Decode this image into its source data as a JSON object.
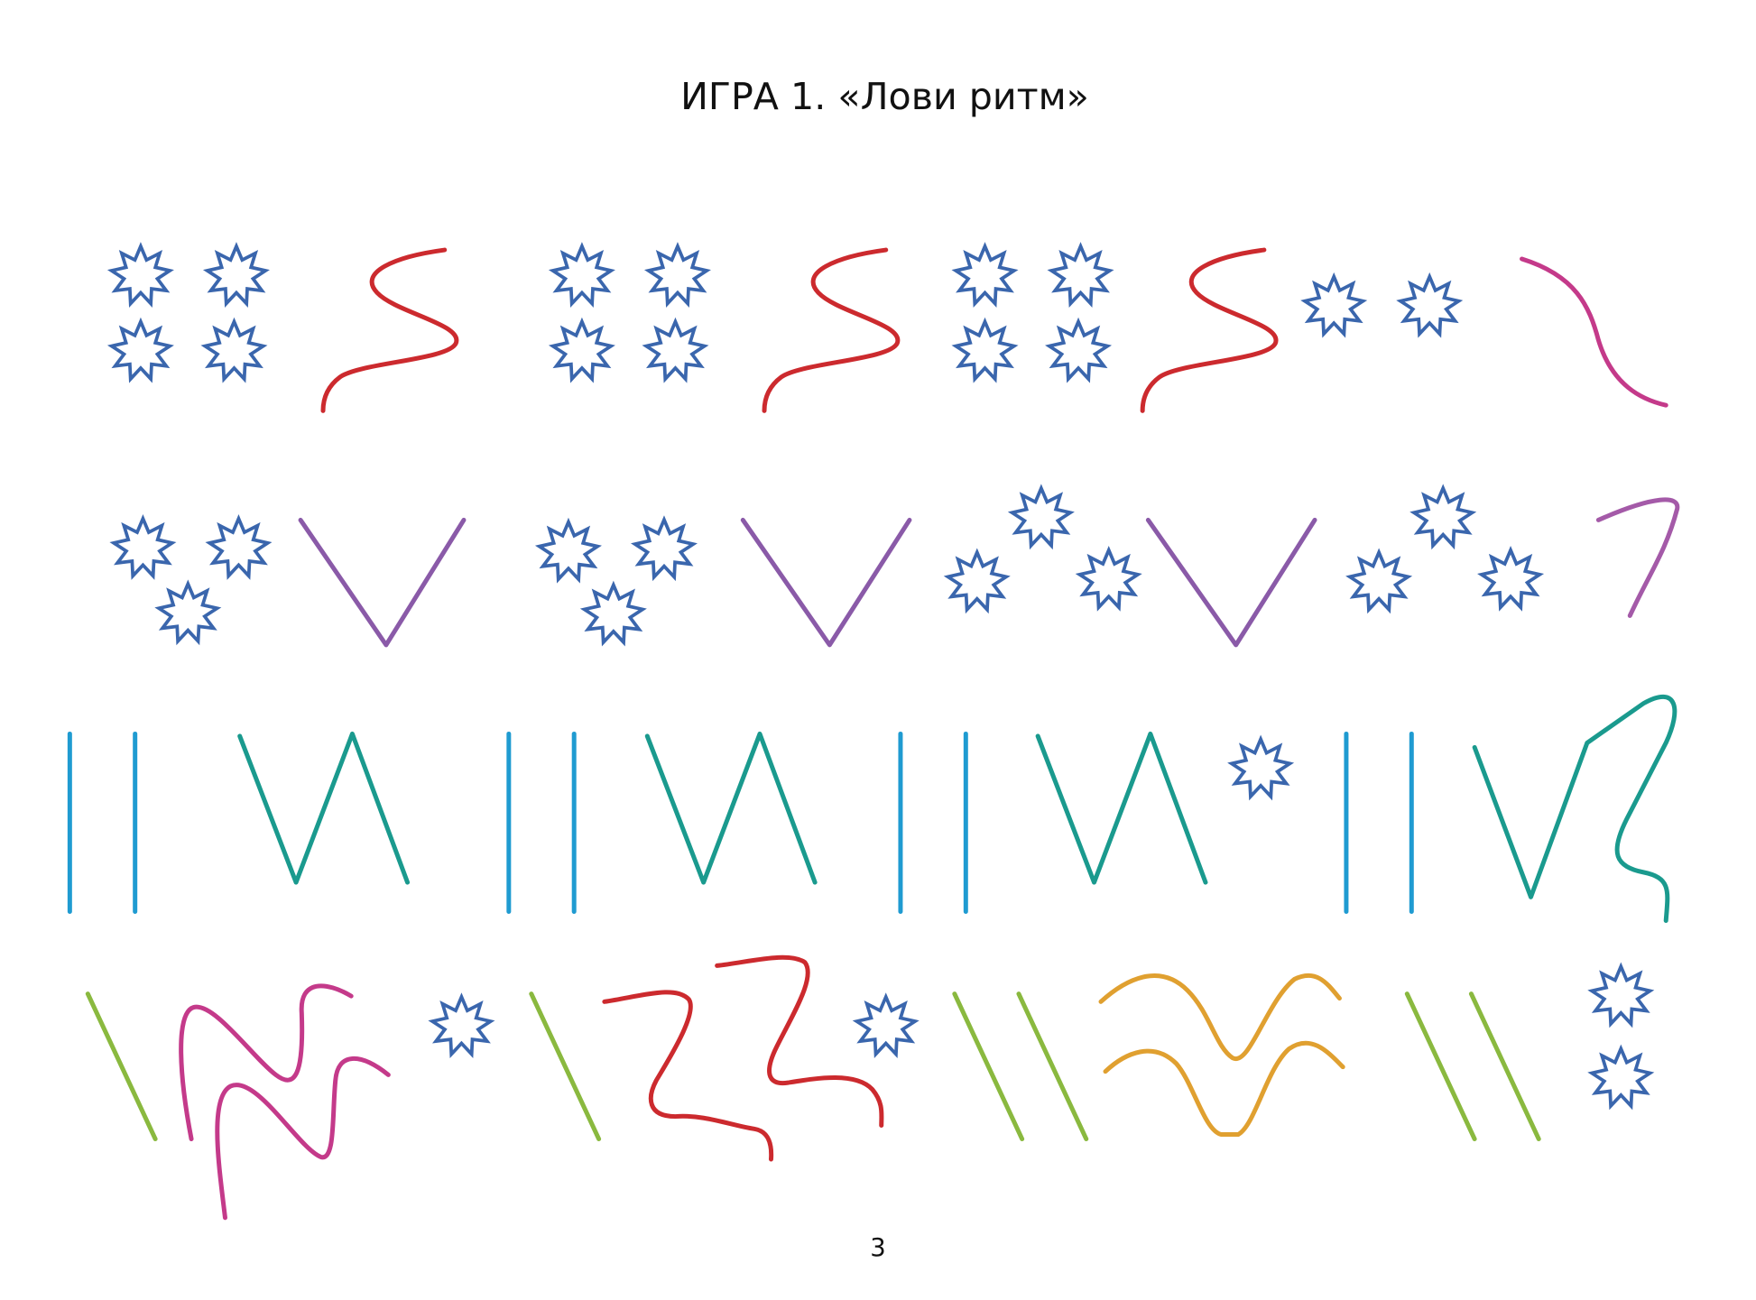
{
  "header": {
    "title": "ИГРА 1. «Лови ритм»"
  },
  "footer": {
    "page_number": "3"
  }
}
